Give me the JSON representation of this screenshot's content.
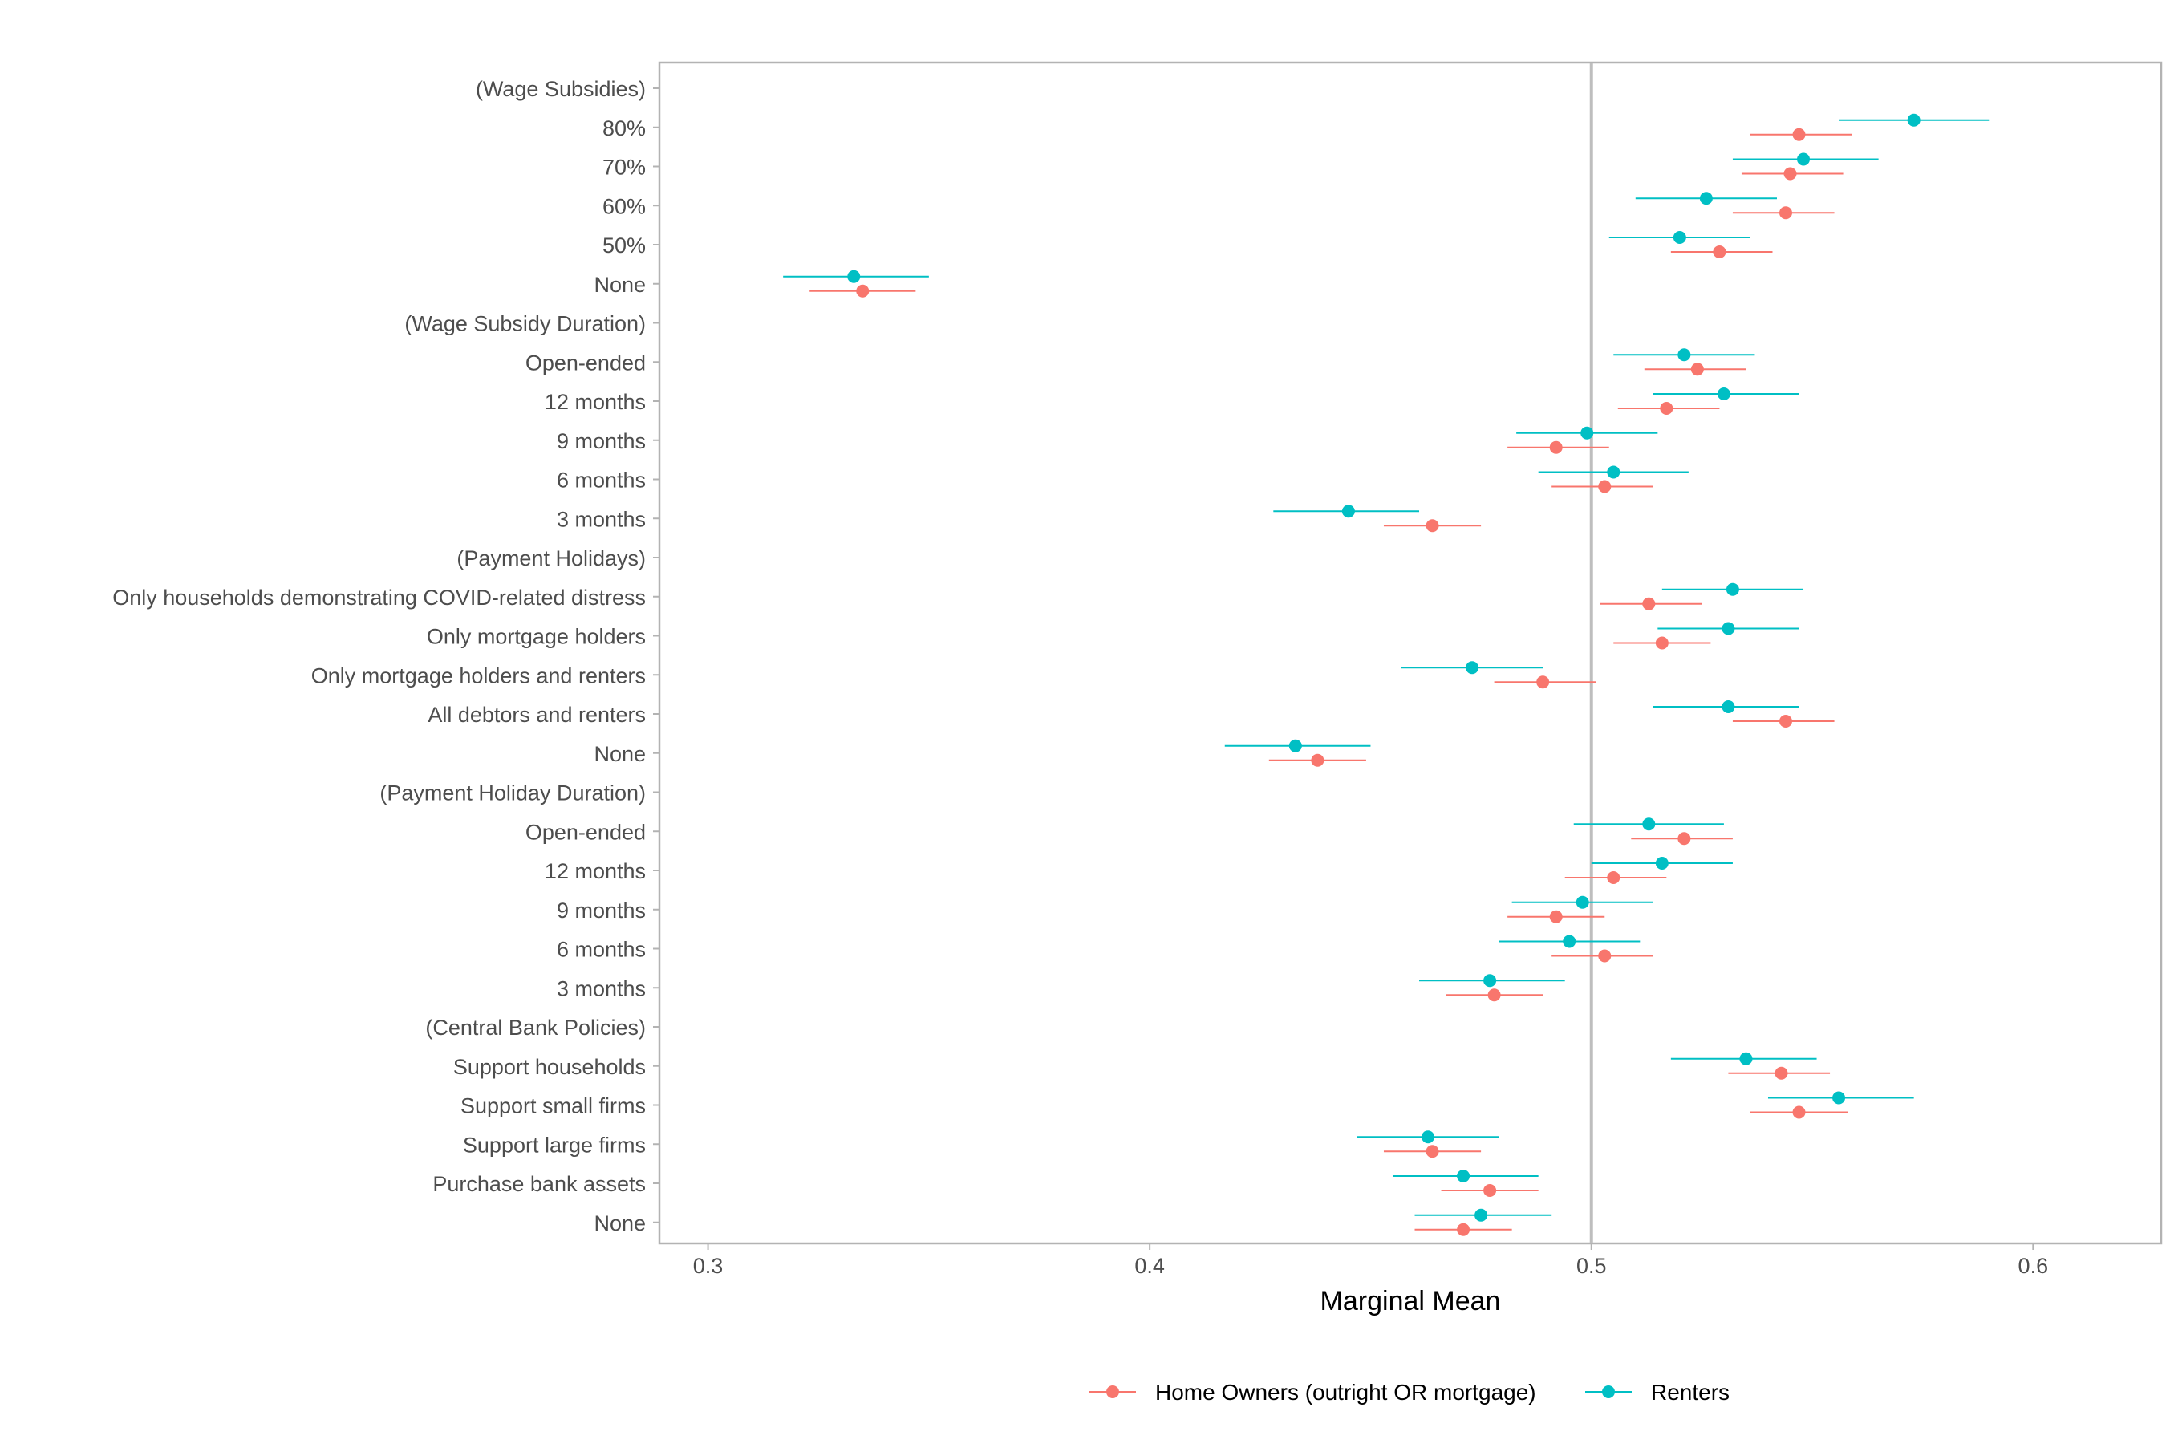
{
  "chart_data": {
    "type": "scatter",
    "subtype": "dot-and-whisker",
    "title": "",
    "xlabel": "Marginal Mean",
    "ylabel": "",
    "xlim": [
      0.289,
      0.629
    ],
    "xticks": [
      "0.3",
      "0.4",
      "0.5",
      "0.6"
    ],
    "xtick_values": [
      0.3,
      0.4,
      0.5,
      0.6
    ],
    "reference_line": 0.5,
    "grid": false,
    "legend_position": "bottom",
    "categories": [
      "(Wage Subsidies)",
      "80%",
      "70%",
      "60%",
      "50%",
      "None",
      "(Wage Subsidy Duration)",
      "Open-ended",
      "12 months",
      "9 months",
      "6 months",
      "3 months",
      "(Payment Holidays)",
      "Only households demonstrating COVID-related distress",
      "Only mortgage holders",
      "Only mortgage holders and renters",
      "All debtors and renters",
      "None",
      "(Payment Holiday Duration)",
      "Open-ended",
      "12 months",
      "9 months",
      "6 months",
      "3 months",
      "(Central Bank Policies)",
      "Support households",
      "Support small firms",
      "Support large firms",
      "Purchase bank assets",
      "None"
    ],
    "series": [
      {
        "name": "Home Owners (outright OR mortgage)",
        "color": "#F8766D",
        "values": [
          null,
          0.547,
          0.545,
          0.544,
          0.529,
          0.335,
          null,
          0.524,
          0.517,
          0.492,
          0.503,
          0.464,
          null,
          0.513,
          0.516,
          0.489,
          0.544,
          0.438,
          null,
          0.521,
          0.505,
          0.492,
          0.503,
          0.478,
          null,
          0.543,
          0.547,
          0.464,
          0.477,
          0.471
        ],
        "lower": [
          null,
          0.536,
          0.534,
          0.532,
          0.518,
          0.323,
          null,
          0.512,
          0.506,
          0.481,
          0.491,
          0.453,
          null,
          0.502,
          0.505,
          0.478,
          0.532,
          0.427,
          null,
          0.509,
          0.494,
          0.481,
          0.491,
          0.467,
          null,
          0.531,
          0.536,
          0.453,
          0.466,
          0.46
        ],
        "upper": [
          null,
          0.559,
          0.557,
          0.555,
          0.541,
          0.347,
          null,
          0.535,
          0.529,
          0.504,
          0.514,
          0.475,
          null,
          0.525,
          0.527,
          0.501,
          0.555,
          0.449,
          null,
          0.532,
          0.517,
          0.503,
          0.514,
          0.489,
          null,
          0.554,
          0.558,
          0.475,
          0.488,
          0.482
        ]
      },
      {
        "name": "Renters",
        "color": "#00BFC4",
        "values": [
          null,
          0.573,
          0.548,
          0.526,
          0.52,
          0.333,
          null,
          0.521,
          0.53,
          0.499,
          0.505,
          0.445,
          null,
          0.532,
          0.531,
          0.473,
          0.531,
          0.433,
          null,
          0.513,
          0.516,
          0.498,
          0.495,
          0.477,
          null,
          0.535,
          0.556,
          0.463,
          0.471,
          0.475
        ],
        "lower": [
          null,
          0.556,
          0.532,
          0.51,
          0.504,
          0.317,
          null,
          0.505,
          0.514,
          0.483,
          0.488,
          0.428,
          null,
          0.516,
          0.515,
          0.457,
          0.514,
          0.417,
          null,
          0.496,
          0.5,
          0.482,
          0.479,
          0.461,
          null,
          0.518,
          0.54,
          0.447,
          0.455,
          0.46
        ],
        "upper": [
          null,
          0.59,
          0.565,
          0.542,
          0.536,
          0.35,
          null,
          0.537,
          0.547,
          0.515,
          0.522,
          0.461,
          null,
          0.548,
          0.547,
          0.489,
          0.547,
          0.45,
          null,
          0.53,
          0.532,
          0.514,
          0.511,
          0.494,
          null,
          0.551,
          0.573,
          0.479,
          0.488,
          0.491
        ]
      }
    ]
  }
}
